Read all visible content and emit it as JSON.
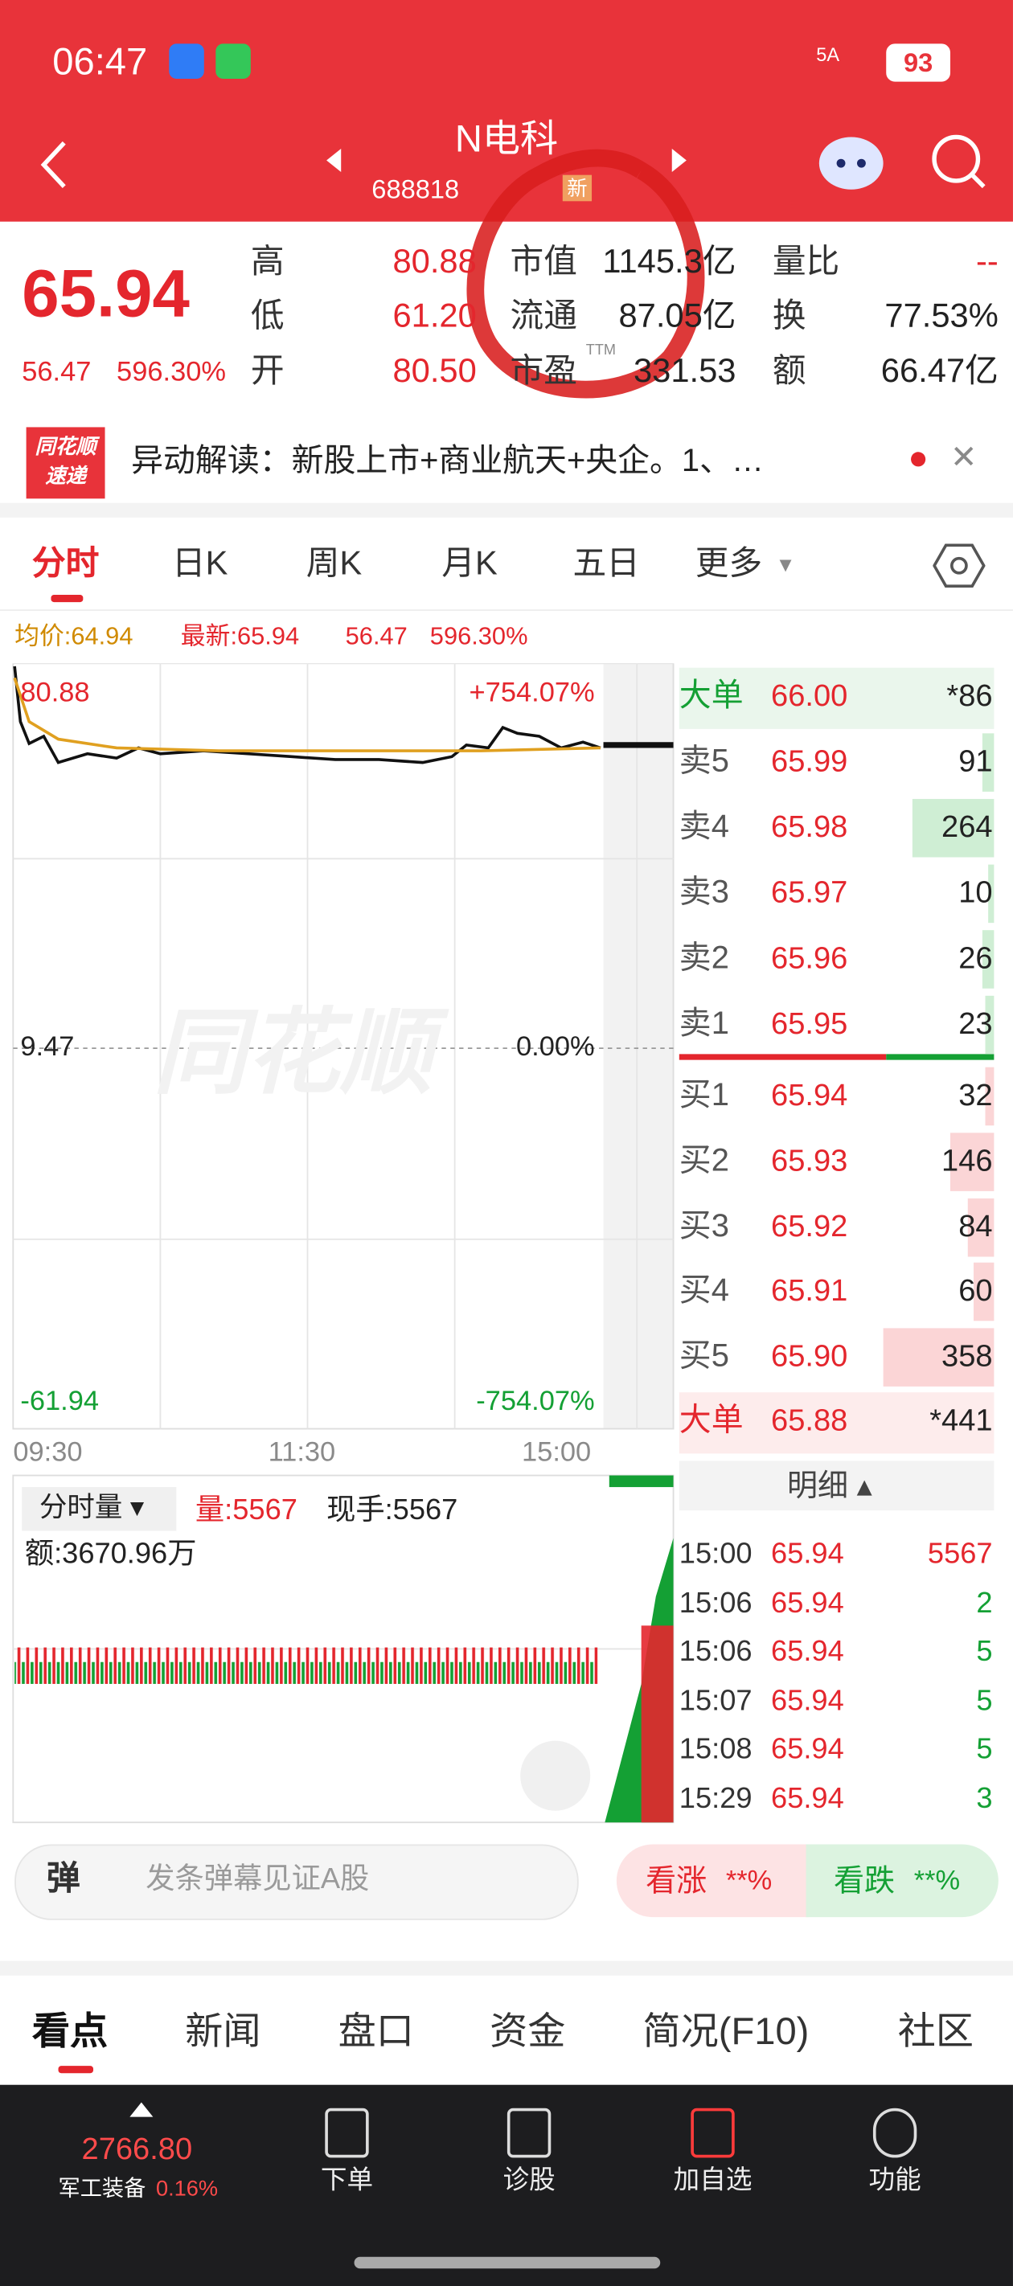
{
  "status": {
    "time": "06:47",
    "network": "5A",
    "battery": "93"
  },
  "header": {
    "title": "N电科",
    "code": "688818",
    "tag": "新"
  },
  "quote": {
    "price": "65.94",
    "change": "56.47",
    "percent": "596.30%",
    "stats": [
      [
        "高",
        "80.88"
      ],
      [
        "低",
        "61.20"
      ],
      [
        "开",
        "80.50"
      ],
      [
        "市值",
        "1145.3亿"
      ],
      [
        "流通",
        "87.05亿"
      ],
      [
        "市盈",
        "331.53"
      ],
      [
        "量比",
        "--"
      ],
      [
        "换",
        "77.53%"
      ],
      [
        "额",
        "66.47亿"
      ]
    ],
    "ttm": "TTM"
  },
  "news": {
    "badge": [
      "同花顺",
      "速递"
    ],
    "text": "异动解读：新股上市+商业航天+央企。1、…"
  },
  "tabs": [
    "分时",
    "日K",
    "周K",
    "月K",
    "五日",
    "更多"
  ],
  "info": {
    "avg": "均价:64.94",
    "latest": "最新:65.94",
    "change": "56.47",
    "percent": "596.30%"
  },
  "chart": {
    "watermark": "同花顺",
    "top": "80.88",
    "top_pct": "+754.07%",
    "mid": "9.47",
    "mid_pct": "0.00%",
    "bottom": "-61.94",
    "bottom_pct": "-754.07%",
    "times": [
      "09:30",
      "11:30",
      "15:00"
    ]
  },
  "volume": {
    "selector": "分时量",
    "volume": "量:5567",
    "hand": "现手:5567",
    "amount": "额:3670.96万"
  },
  "order_book": {
    "big_top": [
      "大单",
      "66.00",
      "*86"
    ],
    "asks": [
      [
        "卖5",
        "65.99",
        "91"
      ],
      [
        "卖4",
        "65.98",
        "264"
      ],
      [
        "卖3",
        "65.97",
        "10"
      ],
      [
        "卖2",
        "65.96",
        "26"
      ],
      [
        "卖1",
        "65.95",
        "23"
      ]
    ],
    "bids": [
      [
        "买1",
        "65.94",
        "32"
      ],
      [
        "买2",
        "65.93",
        "146"
      ],
      [
        "买3",
        "65.92",
        "84"
      ],
      [
        "买4",
        "65.91",
        "60"
      ],
      [
        "买5",
        "65.90",
        "358"
      ]
    ],
    "big_bottom": [
      "大单",
      "65.88",
      "*441"
    ],
    "detail": "明细",
    "trades": [
      [
        "15:00",
        "65.94",
        "5567"
      ],
      [
        "15:06",
        "65.94",
        "2"
      ],
      [
        "15:06",
        "65.94",
        "5"
      ],
      [
        "15:07",
        "65.94",
        "5"
      ],
      [
        "15:08",
        "65.94",
        "5"
      ],
      [
        "15:29",
        "65.94",
        "3"
      ]
    ]
  },
  "danmu": {
    "icon": "弹",
    "placeholder": "发条弹幕见证A股",
    "up": "看涨",
    "up_pct": "**%",
    "down": "看跌",
    "down_pct": "**%"
  },
  "bottom_tabs": [
    "看点",
    "新闻",
    "盘口",
    "资金",
    "简况(F10)",
    "社区"
  ],
  "nav": {
    "index_value": "2766.80",
    "index_name": "军工装备",
    "index_pct": "0.16%",
    "items": [
      "下单",
      "诊股",
      "加自选",
      "功能"
    ]
  }
}
